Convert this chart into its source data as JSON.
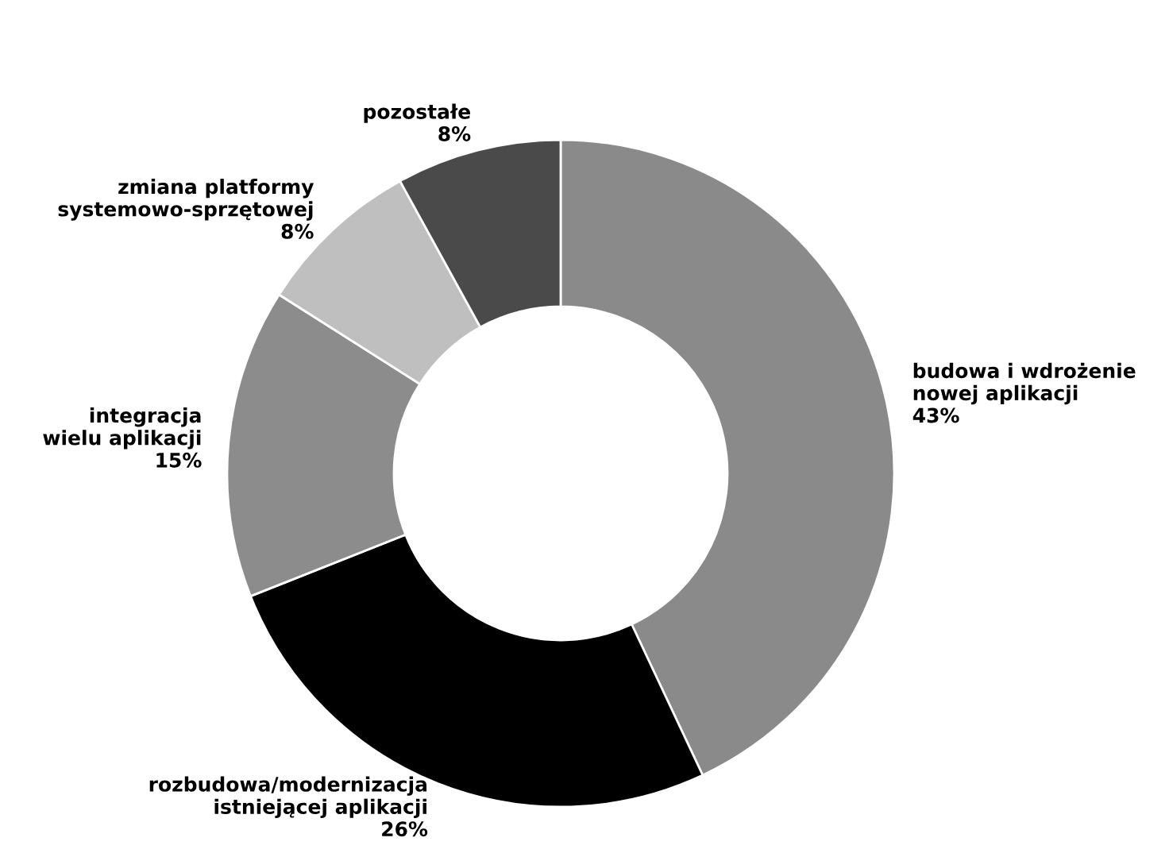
{
  "chart_data": {
    "type": "donut",
    "categories": [
      "budowa i wdrożenie\nnowej aplikacji",
      "rozbudowa/modernizacja\nistniejącej aplikacji",
      "integracja\nwielu aplikacji",
      "zmiana platformy\nsystemowo-sprzętowej",
      "pozostałe"
    ],
    "values": [
      43,
      26,
      15,
      8,
      8
    ],
    "value_labels": [
      "43%",
      "26%",
      "15%",
      "8%",
      "8%"
    ],
    "colors": [
      "#8a8a8a",
      "#000000",
      "#8c8c8c",
      "#bfbfbf",
      "#4a4a4a"
    ]
  }
}
